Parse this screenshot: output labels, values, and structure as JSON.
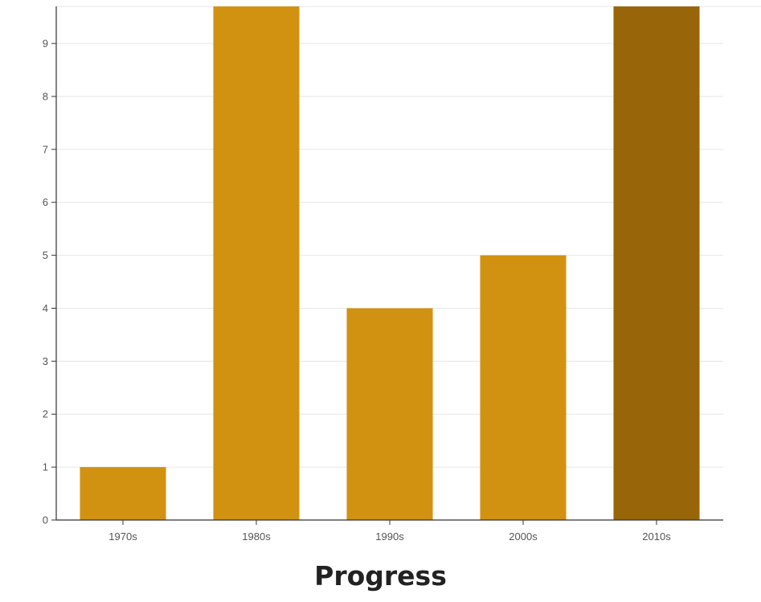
{
  "chart_data": {
    "type": "bar",
    "title": "Progress",
    "categories": [
      "1970s",
      "1980s",
      "1990s",
      "2000s",
      "2010s"
    ],
    "values": [
      1,
      9.7,
      4,
      5,
      9.7
    ],
    "xlabel": "",
    "ylabel": "",
    "ylim": [
      0,
      9.7
    ],
    "yticks": [
      0,
      1,
      2,
      3,
      4,
      5,
      6,
      7,
      8,
      9
    ],
    "grid": true,
    "legend": "none"
  },
  "colors": {
    "bar": "#D29211",
    "highlight_bar": "#986608",
    "grid": "#e6e6e6",
    "axis": "#333333",
    "highlight_index": 4
  }
}
